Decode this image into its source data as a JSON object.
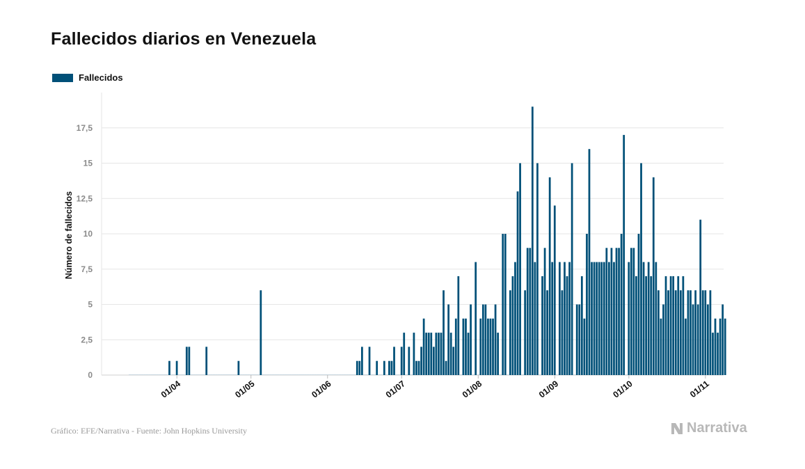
{
  "header": {
    "title": "Fallecidos diarios en Venezuela"
  },
  "legend": {
    "label": "Fallecidos"
  },
  "footer": {
    "source": "Gráfico: EFE/Narrativa - Fuente: John Hopkins University",
    "brand": "Narrativa"
  },
  "colors": {
    "bar": "#005078",
    "grid": "#e6e6e6",
    "tick_label": "#8a8a8a",
    "brand": "#b8b8b8"
  },
  "chart_data": {
    "type": "bar",
    "ylabel": "Número de fallecidos",
    "ylim": [
      0,
      20
    ],
    "yticks": [
      {
        "value": 0,
        "label": "0"
      },
      {
        "value": 2.5,
        "label": "2,5"
      },
      {
        "value": 5,
        "label": "5"
      },
      {
        "value": 7.5,
        "label": "7,5"
      },
      {
        "value": 10,
        "label": "10"
      },
      {
        "value": 12.5,
        "label": "12,5"
      },
      {
        "value": 15,
        "label": "15"
      },
      {
        "value": 17.5,
        "label": "17,5"
      }
    ],
    "grid": true,
    "legend_position": "top-left",
    "x_start": "2020-03-13",
    "xticks": [
      {
        "date": "2020-04-01",
        "label": "01/04"
      },
      {
        "date": "2020-05-01",
        "label": "01/05"
      },
      {
        "date": "2020-06-01",
        "label": "01/06"
      },
      {
        "date": "2020-07-01",
        "label": "01/07"
      },
      {
        "date": "2020-08-01",
        "label": "01/08"
      },
      {
        "date": "2020-09-01",
        "label": "01/09"
      },
      {
        "date": "2020-10-01",
        "label": "01/10"
      },
      {
        "date": "2020-11-01",
        "label": "01/11"
      }
    ],
    "values": [
      0,
      0,
      0,
      0,
      0,
      0,
      0,
      0,
      0,
      0,
      0,
      0,
      0,
      0,
      0,
      0,
      1,
      0,
      0,
      1,
      0,
      0,
      0,
      2,
      2,
      0,
      0,
      0,
      0,
      0,
      0,
      2,
      0,
      0,
      0,
      0,
      0,
      0,
      0,
      0,
      0,
      0,
      0,
      0,
      1,
      0,
      0,
      0,
      0,
      0,
      0,
      0,
      0,
      6,
      0,
      0,
      0,
      0,
      0,
      0,
      0,
      0,
      0,
      0,
      0,
      0,
      0,
      0,
      0,
      0,
      0,
      0,
      0,
      0,
      0,
      0,
      0,
      0,
      0,
      0,
      0,
      0,
      0,
      0,
      0,
      0,
      0,
      0,
      0,
      0,
      0,
      0,
      1,
      1,
      2,
      0,
      0,
      2,
      0,
      0,
      1,
      0,
      0,
      1,
      0,
      1,
      1,
      2,
      0,
      0,
      2,
      3,
      0,
      2,
      0,
      3,
      1,
      1,
      2,
      4,
      3,
      3,
      3,
      2,
      3,
      3,
      3,
      6,
      1,
      5,
      3,
      2,
      4,
      7,
      0,
      4,
      4,
      3,
      5,
      0,
      8,
      0,
      4,
      5,
      5,
      4,
      4,
      4,
      5,
      3,
      0,
      10,
      10,
      0,
      6,
      7,
      8,
      13,
      15,
      0,
      6,
      9,
      9,
      19,
      8,
      15,
      0,
      7,
      9,
      6,
      14,
      8,
      12,
      0,
      8,
      6,
      8,
      7,
      8,
      15,
      0,
      5,
      5,
      7,
      4,
      10,
      16,
      8,
      8,
      8,
      8,
      8,
      8,
      9,
      8,
      9,
      8,
      9,
      9,
      10,
      17,
      0,
      8,
      9,
      9,
      7,
      10,
      15,
      8,
      7,
      8,
      7,
      14,
      8,
      6,
      4,
      5,
      7,
      6,
      7,
      7,
      6,
      7,
      6,
      7,
      4,
      6,
      6,
      5,
      6,
      5,
      11,
      6,
      6,
      5,
      6,
      3,
      4,
      3,
      4,
      5,
      4
    ]
  }
}
